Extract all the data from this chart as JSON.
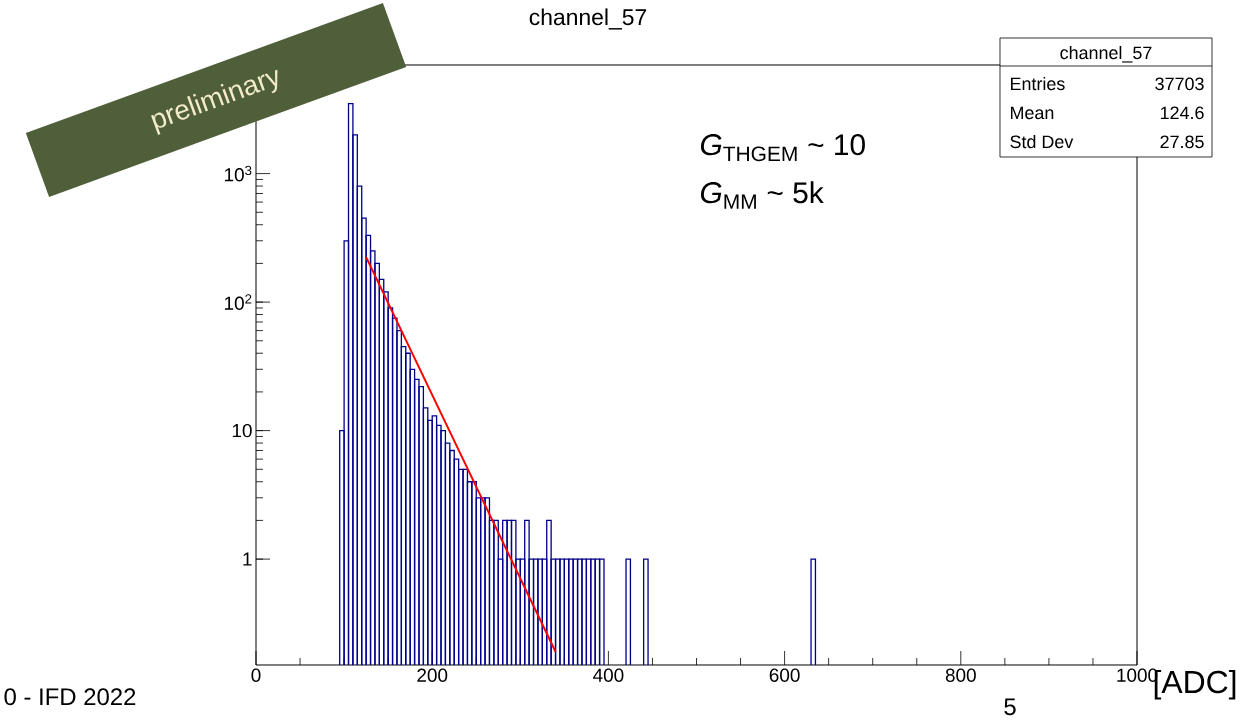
{
  "chart_data": {
    "type": "histogram",
    "title": "channel_57",
    "xlabel": "[ADC]",
    "log": "y",
    "grid": false,
    "xlim": [
      0,
      1000
    ],
    "xticks": [
      0,
      200,
      400,
      600,
      800,
      1000
    ],
    "ylim": [
      0.15,
      7000
    ],
    "yticks": [
      1,
      10,
      {
        "value": 100,
        "label": "10$^{2}$"
      },
      {
        "value": 1000,
        "label": "10$^{3}$"
      }
    ],
    "series": [
      {
        "color": "#00008b",
        "bins": [
          95,
          100,
          105,
          110,
          115,
          120,
          125,
          130,
          135,
          140,
          145,
          150,
          155,
          160,
          165,
          170,
          175,
          180,
          185,
          190,
          195,
          200,
          205,
          210,
          215,
          220,
          225,
          230,
          235,
          240,
          245,
          250,
          255,
          260,
          265,
          270,
          275,
          280,
          285,
          290,
          295,
          300,
          305,
          310,
          315,
          320,
          325,
          330,
          335,
          340,
          345,
          350,
          355,
          360,
          365,
          370,
          375,
          380,
          385,
          390,
          395
        ],
        "values": [
          10,
          300,
          3500,
          2000,
          800,
          450,
          330,
          250,
          200,
          150,
          120,
          90,
          75,
          60,
          45,
          40,
          30,
          25,
          22,
          15,
          12,
          13,
          11,
          10,
          8,
          7,
          6,
          5,
          5,
          4,
          4,
          3,
          3,
          3,
          2,
          2,
          1,
          2,
          2,
          2,
          1,
          1,
          2,
          1,
          1,
          1,
          1,
          2,
          1,
          1,
          1,
          1,
          1,
          1,
          1,
          1,
          1,
          1,
          1,
          1
        ]
      },
      {
        "color": "#00008b",
        "bins": [
          420,
          425
        ],
        "values": [
          1
        ]
      },
      {
        "color": "#00008b",
        "bins": [
          440,
          445
        ],
        "values": [
          1
        ]
      },
      {
        "color": "#00008b",
        "bins": [
          630,
          635
        ],
        "values": [
          1
        ]
      },
      {
        "type": "line",
        "color": "#ff0000",
        "x": [
          125,
          232.5,
          340
        ],
        "values": [
          224,
          6.5,
          0.19
        ]
      }
    ],
    "annotations": [
      "channel_57",
      "Entries",
      "37703",
      "Mean",
      "124.6",
      "Std Dev",
      "27.85",
      "*G*$_{THGEM}$ ~ 10",
      "*G*$_{MM}$ ~ 5k",
      "preliminary",
      "0 - IFD 2022",
      "5"
    ]
  }
}
